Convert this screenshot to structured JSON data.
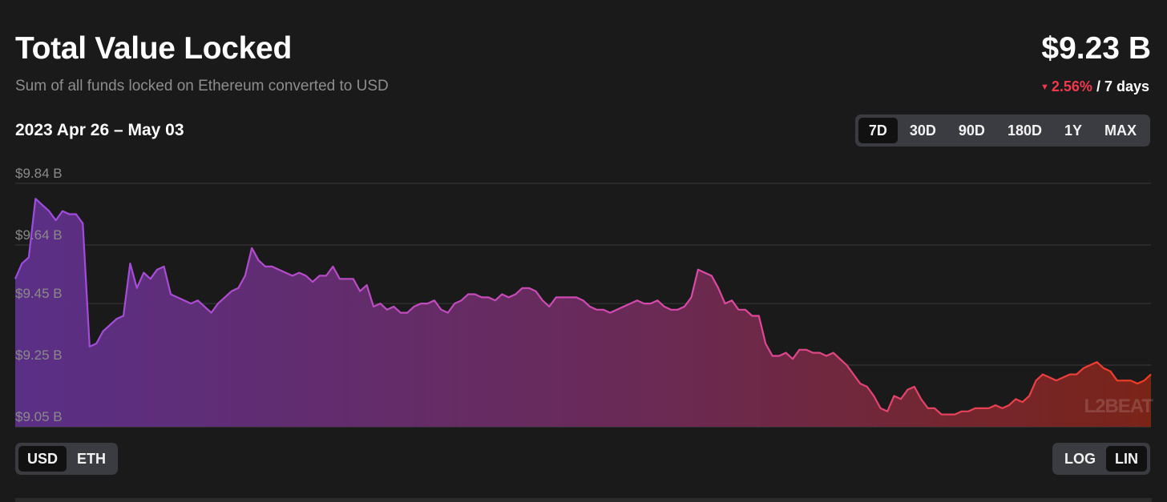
{
  "header": {
    "title": "Total Value Locked",
    "subtitle": "Sum of all funds locked on Ethereum converted to USD",
    "tvl_value": "$9.23 B",
    "change_percent": "2.56%",
    "change_period": "/ 7 days",
    "change_direction": "down"
  },
  "date_range": "2023 Apr 26 – May 03",
  "range_selector": {
    "options": [
      "7D",
      "30D",
      "90D",
      "180D",
      "1Y",
      "MAX"
    ],
    "selected": "7D"
  },
  "unit_selector": {
    "options": [
      "USD",
      "ETH"
    ],
    "selected": "USD"
  },
  "scale_selector": {
    "options": [
      "LOG",
      "LIN"
    ],
    "selected": "LIN"
  },
  "watermark": "L2BEAT",
  "colors": {
    "background": "#1a1a1a",
    "gradient_start": "#9b4de0",
    "gradient_mid": "#c83d9a",
    "gradient_end": "#ef3a2c",
    "negative": "#f0394c"
  },
  "chart_data": {
    "type": "area",
    "title": "",
    "xlabel": "",
    "ylabel": "",
    "y_unit": "$B",
    "y_ticks": [
      "$9.84 B",
      "$9.64 B",
      "$9.45 B",
      "$9.25 B",
      "$9.05 B"
    ],
    "y_tick_values": [
      9.84,
      9.64,
      9.45,
      9.25,
      9.05
    ],
    "ylim": [
      9.05,
      9.84
    ],
    "grid": true,
    "legend": "none",
    "x_start": "2023-04-26",
    "x_end": "2023-05-03",
    "values": [
      9.53,
      9.58,
      9.6,
      9.79,
      9.77,
      9.75,
      9.72,
      9.75,
      9.74,
      9.74,
      9.71,
      9.31,
      9.32,
      9.36,
      9.38,
      9.4,
      9.41,
      9.58,
      9.5,
      9.55,
      9.53,
      9.56,
      9.57,
      9.48,
      9.47,
      9.46,
      9.45,
      9.46,
      9.44,
      9.42,
      9.45,
      9.47,
      9.49,
      9.5,
      9.54,
      9.63,
      9.59,
      9.57,
      9.57,
      9.56,
      9.55,
      9.54,
      9.55,
      9.54,
      9.52,
      9.54,
      9.54,
      9.57,
      9.53,
      9.53,
      9.53,
      9.49,
      9.51,
      9.44,
      9.45,
      9.43,
      9.44,
      9.42,
      9.42,
      9.44,
      9.45,
      9.45,
      9.46,
      9.43,
      9.42,
      9.45,
      9.46,
      9.48,
      9.48,
      9.47,
      9.47,
      9.46,
      9.48,
      9.47,
      9.48,
      9.5,
      9.5,
      9.49,
      9.46,
      9.44,
      9.47,
      9.47,
      9.47,
      9.47,
      9.46,
      9.44,
      9.43,
      9.43,
      9.42,
      9.43,
      9.44,
      9.45,
      9.46,
      9.45,
      9.45,
      9.46,
      9.44,
      9.43,
      9.43,
      9.44,
      9.47,
      9.56,
      9.55,
      9.54,
      9.5,
      9.45,
      9.46,
      9.43,
      9.43,
      9.41,
      9.41,
      9.32,
      9.28,
      9.28,
      9.29,
      9.27,
      9.3,
      9.3,
      9.29,
      9.29,
      9.28,
      9.29,
      9.27,
      9.25,
      9.22,
      9.19,
      9.18,
      9.15,
      9.11,
      9.1,
      9.15,
      9.14,
      9.17,
      9.18,
      9.14,
      9.11,
      9.11,
      9.09,
      9.09,
      9.09,
      9.1,
      9.1,
      9.11,
      9.11,
      9.11,
      9.12,
      9.11,
      9.12,
      9.14,
      9.13,
      9.15,
      9.2,
      9.22,
      9.21,
      9.2,
      9.21,
      9.22,
      9.22,
      9.24,
      9.25,
      9.26,
      9.24,
      9.23,
      9.2,
      9.2,
      9.2,
      9.19,
      9.2,
      9.22
    ]
  }
}
